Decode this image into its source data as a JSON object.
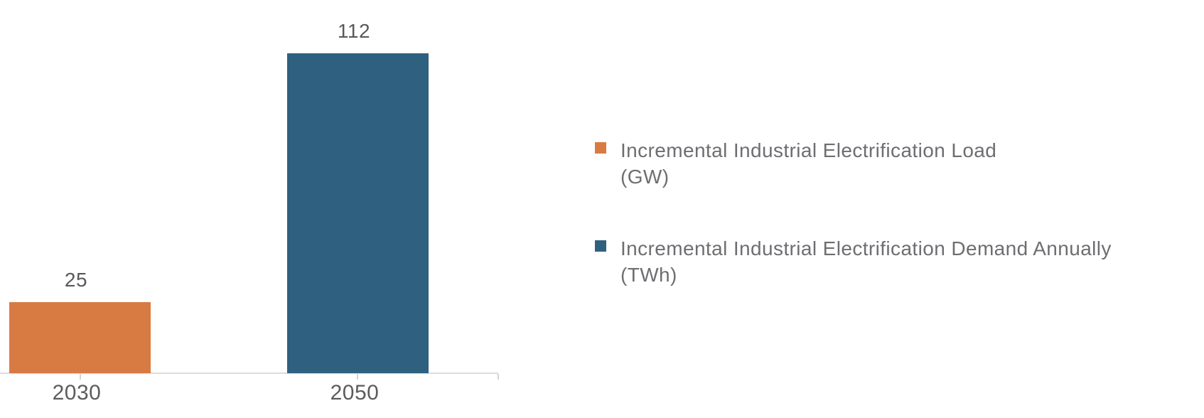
{
  "chart_data": {
    "type": "bar",
    "categories": [
      "2030",
      "2050"
    ],
    "series": [
      {
        "name": "Incremental Industrial Electrification Load (GW)",
        "color": "#D87B43",
        "values": [
          25,
          null
        ]
      },
      {
        "name": "Incremental Industrial Electrification Demand Annually (TWh)",
        "color": "#30607F",
        "values": [
          null,
          112
        ]
      }
    ],
    "title": "",
    "xlabel": "",
    "ylabel": "",
    "ylim": [
      0,
      112
    ],
    "grid": false,
    "value_labels_shown": true,
    "legend_position": "right",
    "axis_color": "#DCDCDC",
    "value_label_color": "#58595B",
    "tick_label_color": "#5B5C5E"
  },
  "legend": {
    "items": [
      {
        "line1": "Incremental Industrial Electrification Load",
        "line2": "(GW)",
        "color": "#D87B43"
      },
      {
        "line1": "Incremental Industrial Electrification Demand Annually",
        "line2": "(TWh)",
        "color": "#30607F"
      }
    ]
  }
}
